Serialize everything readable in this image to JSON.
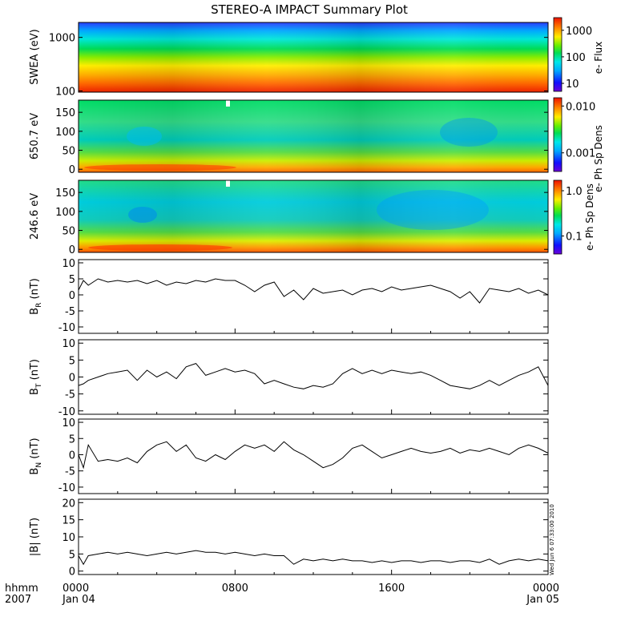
{
  "title": "STEREO-A IMPACT Summary Plot",
  "time_axis": {
    "corner_labels": [
      "hhmm",
      "2007"
    ],
    "ticks": [
      {
        "hours": 0,
        "time": "0000",
        "date": "Jan 04"
      },
      {
        "hours": 8,
        "time": "0800",
        "date": ""
      },
      {
        "hours": 16,
        "time": "1600",
        "date": ""
      },
      {
        "hours": 24,
        "time": "0000",
        "date": "Jan 05"
      }
    ],
    "range_hours": [
      0,
      24
    ]
  },
  "side_stamp": "Wed Jun  6 07:33:00 2010",
  "chart_data": [
    {
      "type": "heatmap",
      "ylabel": "SWEA (eV)",
      "yscale": "log",
      "ylim": [
        95,
        1900
      ],
      "yticks": [
        {
          "value": 100,
          "label": "100"
        },
        {
          "value": 1000,
          "label": "1000"
        }
      ],
      "colorbar": {
        "label": "e- Flux",
        "scale": "log",
        "range": [
          5,
          3000
        ],
        "ticks": [
          {
            "value": 10,
            "label": "10"
          },
          {
            "value": 100,
            "label": "100"
          },
          {
            "value": 1000,
            "label": "1000"
          }
        ]
      }
    },
    {
      "type": "heatmap",
      "ylabel": "650.7 eV",
      "yscale": "linear",
      "ylim": [
        -8,
        182
      ],
      "yticks": [
        {
          "value": 0,
          "label": "0"
        },
        {
          "value": 50,
          "label": "50"
        },
        {
          "value": 100,
          "label": "100"
        },
        {
          "value": 150,
          "label": "150"
        }
      ],
      "colorbar": {
        "label": "e- Ph Sp Dens",
        "scale": "log",
        "range": [
          0.0004,
          0.015
        ],
        "ticks": [
          {
            "value": 0.001,
            "label": "0.001"
          },
          {
            "value": 0.01,
            "label": "0.010"
          }
        ]
      }
    },
    {
      "type": "heatmap",
      "ylabel": "246.6 eV",
      "yscale": "linear",
      "ylim": [
        -8,
        182
      ],
      "yticks": [
        {
          "value": 0,
          "label": "0"
        },
        {
          "value": 50,
          "label": "50"
        },
        {
          "value": 100,
          "label": "100"
        },
        {
          "value": 150,
          "label": "150"
        }
      ],
      "colorbar": {
        "label": "e- Ph Sp Dens",
        "scale": "log",
        "range": [
          0.04,
          1.7
        ],
        "ticks": [
          {
            "value": 0.1,
            "label": "0.1"
          },
          {
            "value": 1,
            "label": "1.0"
          }
        ]
      }
    },
    {
      "type": "line",
      "ylabel": {
        "main": "B",
        "sub": "R",
        "units": " (nT)"
      },
      "ylim": [
        -12,
        11
      ],
      "yticks": [
        {
          "value": -10,
          "label": "-10"
        },
        {
          "value": -5,
          "label": "-5"
        },
        {
          "value": 0,
          "label": "0"
        },
        {
          "value": 5,
          "label": "5"
        },
        {
          "value": 10,
          "label": "10"
        }
      ],
      "x": [
        0,
        0.25,
        0.5,
        1,
        1.5,
        2,
        2.5,
        3,
        3.5,
        4,
        4.5,
        5,
        5.5,
        6,
        6.5,
        7,
        7.5,
        8,
        8.5,
        9,
        9.5,
        10,
        10.5,
        11,
        11.5,
        12,
        12.5,
        13,
        13.5,
        14,
        14.5,
        15,
        15.5,
        16,
        16.5,
        17,
        17.5,
        18,
        18.5,
        19,
        19.5,
        20,
        20.5,
        21,
        21.5,
        22,
        22.5,
        23,
        23.5,
        24
      ],
      "values": [
        1.5,
        4.5,
        3,
        5,
        4,
        4.5,
        4,
        4.5,
        3.5,
        4.5,
        3,
        4,
        3.5,
        4.5,
        4,
        5,
        4.5,
        4.5,
        3,
        1,
        3,
        4,
        -0.5,
        1.5,
        -1.5,
        2,
        0.5,
        1,
        1.5,
        0,
        1.5,
        2,
        1,
        2.5,
        1.5,
        2,
        2.5,
        3,
        2,
        1,
        -1,
        1,
        -2.5,
        2,
        1.5,
        1,
        2,
        0.5,
        1.5,
        0
      ]
    },
    {
      "type": "line",
      "ylabel": {
        "main": "B",
        "sub": "T",
        "units": " (nT)"
      },
      "ylim": [
        -11,
        11
      ],
      "yticks": [
        {
          "value": -10,
          "label": "-10"
        },
        {
          "value": -5,
          "label": "-5"
        },
        {
          "value": 0,
          "label": "0"
        },
        {
          "value": 5,
          "label": "5"
        },
        {
          "value": 10,
          "label": "10"
        }
      ],
      "x": [
        0,
        0.25,
        0.5,
        1,
        1.5,
        2,
        2.5,
        3,
        3.5,
        4,
        4.5,
        5,
        5.5,
        6,
        6.5,
        7,
        7.5,
        8,
        8.5,
        9,
        9.5,
        10,
        10.5,
        11,
        11.5,
        12,
        12.5,
        13,
        13.5,
        14,
        14.5,
        15,
        15.5,
        16,
        16.5,
        17,
        17.5,
        18,
        18.5,
        19,
        19.5,
        20,
        20.5,
        21,
        21.5,
        22,
        22.5,
        23,
        23.5,
        24
      ],
      "values": [
        -2.5,
        -2,
        -1,
        0,
        1,
        1.5,
        2,
        -1,
        2,
        0,
        1.5,
        -0.5,
        3,
        4,
        0.5,
        1.5,
        2.5,
        1.5,
        2,
        1,
        -2,
        -1,
        -2,
        -3,
        -3.5,
        -2.5,
        -3,
        -2,
        1,
        2.5,
        1,
        2,
        1,
        2,
        1.5,
        1,
        1.5,
        0.5,
        -1,
        -2.5,
        -3,
        -3.5,
        -2.5,
        -1,
        -2.5,
        -1,
        0.5,
        1.5,
        3,
        -2.5
      ]
    },
    {
      "type": "line",
      "ylabel": {
        "main": "B",
        "sub": "N",
        "units": " (nT)"
      },
      "ylim": [
        -12,
        11
      ],
      "yticks": [
        {
          "value": -10,
          "label": "-10"
        },
        {
          "value": -5,
          "label": "-5"
        },
        {
          "value": 0,
          "label": "0"
        },
        {
          "value": 5,
          "label": "5"
        },
        {
          "value": 10,
          "label": "10"
        }
      ],
      "x": [
        0,
        0.25,
        0.5,
        1,
        1.5,
        2,
        2.5,
        3,
        3.5,
        4,
        4.5,
        5,
        5.5,
        6,
        6.5,
        7,
        7.5,
        8,
        8.5,
        9,
        9.5,
        10,
        10.5,
        11,
        11.5,
        12,
        12.5,
        13,
        13.5,
        14,
        14.5,
        15,
        15.5,
        16,
        16.5,
        17,
        17.5,
        18,
        18.5,
        19,
        19.5,
        20,
        20.5,
        21,
        21.5,
        22,
        22.5,
        23,
        23.5,
        24
      ],
      "values": [
        0,
        -4,
        3,
        -2,
        -1.5,
        -2,
        -1,
        -2.5,
        1,
        3,
        4,
        1,
        3,
        -1,
        -2,
        0,
        -1.5,
        1,
        3,
        2,
        3,
        1,
        4,
        1.5,
        0,
        -2,
        -4,
        -3,
        -1,
        2,
        3,
        1,
        -1,
        0,
        1,
        2,
        1,
        0.5,
        1,
        2,
        0.5,
        1.5,
        1,
        2,
        1,
        0,
        2,
        3,
        2,
        0.5
      ]
    },
    {
      "type": "line",
      "ylabel": {
        "main": "|B|",
        "sub": "",
        "units": " (nT)"
      },
      "ylim": [
        -1,
        21
      ],
      "yticks": [
        {
          "value": 0,
          "label": "0"
        },
        {
          "value": 5,
          "label": "5"
        },
        {
          "value": 10,
          "label": "10"
        },
        {
          "value": 15,
          "label": "15"
        },
        {
          "value": 20,
          "label": "20"
        }
      ],
      "x": [
        0,
        0.25,
        0.5,
        1,
        1.5,
        2,
        2.5,
        3,
        3.5,
        4,
        4.5,
        5,
        5.5,
        6,
        6.5,
        7,
        7.5,
        8,
        8.5,
        9,
        9.5,
        10,
        10.5,
        11,
        11.5,
        12,
        12.5,
        13,
        13.5,
        14,
        14.5,
        15,
        15.5,
        16,
        16.5,
        17,
        17.5,
        18,
        18.5,
        19,
        19.5,
        20,
        20.5,
        21,
        21.5,
        22,
        22.5,
        23,
        23.5,
        24
      ],
      "values": [
        4.5,
        2,
        4.5,
        5,
        5.5,
        5,
        5.5,
        5,
        4.5,
        5,
        5.5,
        5,
        5.5,
        6,
        5.5,
        5.5,
        5,
        5.5,
        5,
        4.5,
        5,
        4.5,
        4.5,
        2,
        3.5,
        3,
        3.5,
        3,
        3.5,
        3,
        3,
        2.5,
        3,
        2.5,
        3,
        3,
        2.5,
        3,
        3,
        2.5,
        3,
        3,
        2.5,
        3.5,
        2,
        3,
        3.5,
        3,
        3.5,
        3
      ]
    }
  ]
}
